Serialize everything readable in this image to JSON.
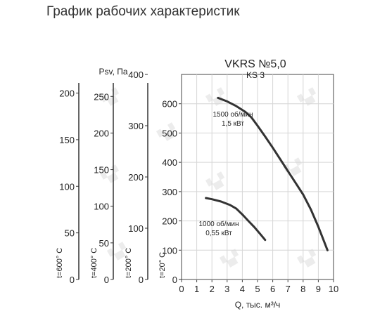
{
  "page": {
    "title": "График рабочих характеристик"
  },
  "chart_data": {
    "type": "line",
    "title": "VKRS №5,0",
    "subtitle": "KS 3",
    "xlabel": "Q, тыс. м³/ч",
    "ylabel": "Psv, Па",
    "xlim": [
      0,
      10
    ],
    "ylim": [
      0,
      700
    ],
    "x_ticks": [
      "0",
      "1",
      "2",
      "3",
      "4",
      "5",
      "6",
      "7",
      "8",
      "9",
      "10"
    ],
    "y_ticks": [
      "100",
      "200",
      "300",
      "400",
      "500",
      "600"
    ],
    "grid": true,
    "extra_axes": [
      {
        "label": "t=600° C",
        "max": 220,
        "ticks": [
          "0",
          "50",
          "100",
          "150",
          "200"
        ]
      },
      {
        "label": "t=400° C",
        "max": 280,
        "ticks": [
          "0",
          "50",
          "100",
          "150",
          "200",
          "250"
        ]
      },
      {
        "label": "t=200° C",
        "max": 400,
        "ticks": [
          "0",
          "100",
          "200",
          "300",
          "400"
        ]
      },
      {
        "label": "t=20° C",
        "max": 700,
        "ticks": [
          "0"
        ]
      }
    ],
    "series": [
      {
        "name": "1500 об/мин",
        "label_lines": [
          "1500 об/мин",
          "1,5 кВт"
        ],
        "x": [
          2.4,
          3.0,
          3.6,
          4.2,
          4.6,
          5.0,
          5.5,
          6.0,
          6.5,
          7.0,
          7.5,
          8.0,
          8.5,
          9.0,
          9.3,
          9.6
        ],
        "y": [
          620,
          608,
          592,
          572,
          553,
          525,
          488,
          450,
          410,
          370,
          330,
          290,
          240,
          180,
          140,
          100
        ]
      },
      {
        "name": "1000 об/мин",
        "label_lines": [
          "1000 об/мин",
          "0,55 кВт"
        ],
        "x": [
          1.6,
          2.0,
          2.6,
          3.2,
          3.6,
          4.0,
          4.4,
          4.8,
          5.2,
          5.5
        ],
        "y": [
          278,
          274,
          266,
          254,
          242,
          222,
          200,
          178,
          154,
          135
        ]
      }
    ]
  }
}
